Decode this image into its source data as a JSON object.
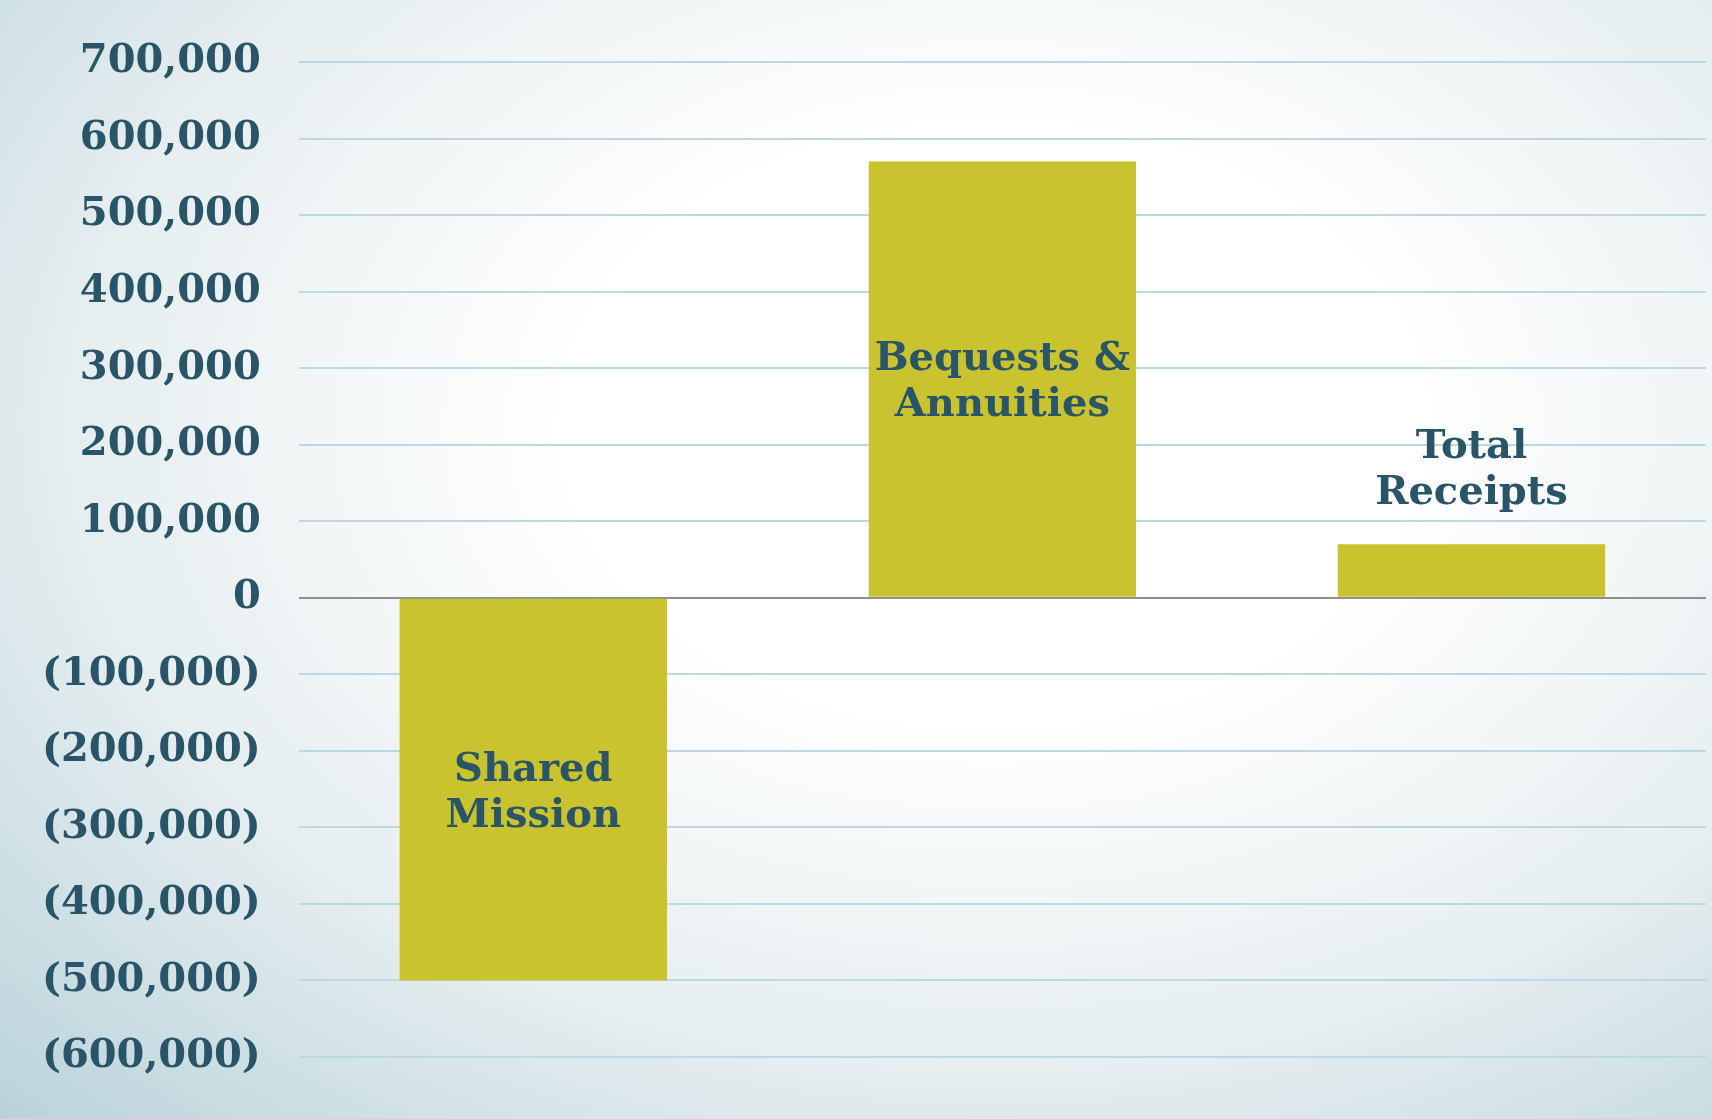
{
  "chart_data": {
    "type": "bar",
    "categories": [
      "Shared Mission",
      "Bequests & Annuities",
      "Total Receipts"
    ],
    "values": [
      -500000,
      570000,
      70000
    ],
    "color": "#c8c32e",
    "ylim": [
      -600000,
      700000
    ],
    "yticks": [
      {
        "value": -600000,
        "label": "(600,000)"
      },
      {
        "value": -500000,
        "label": "(500,000)"
      },
      {
        "value": -400000,
        "label": "(400,000)"
      },
      {
        "value": -300000,
        "label": "(300,000)"
      },
      {
        "value": -200000,
        "label": "(200,000)"
      },
      {
        "value": -100000,
        "label": "(100,000)"
      },
      {
        "value": 0,
        "label": "0"
      },
      {
        "value": 100000,
        "label": "100,000"
      },
      {
        "value": 200000,
        "label": "200,000"
      },
      {
        "value": 300000,
        "label": "300,000"
      },
      {
        "value": 400000,
        "label": "400,000"
      },
      {
        "value": 500000,
        "label": "500,000"
      },
      {
        "value": 600000,
        "label": "600,000"
      },
      {
        "value": 700000,
        "label": "700,000"
      }
    ],
    "grid": "y",
    "legend": false,
    "tick_labels": "y"
  }
}
